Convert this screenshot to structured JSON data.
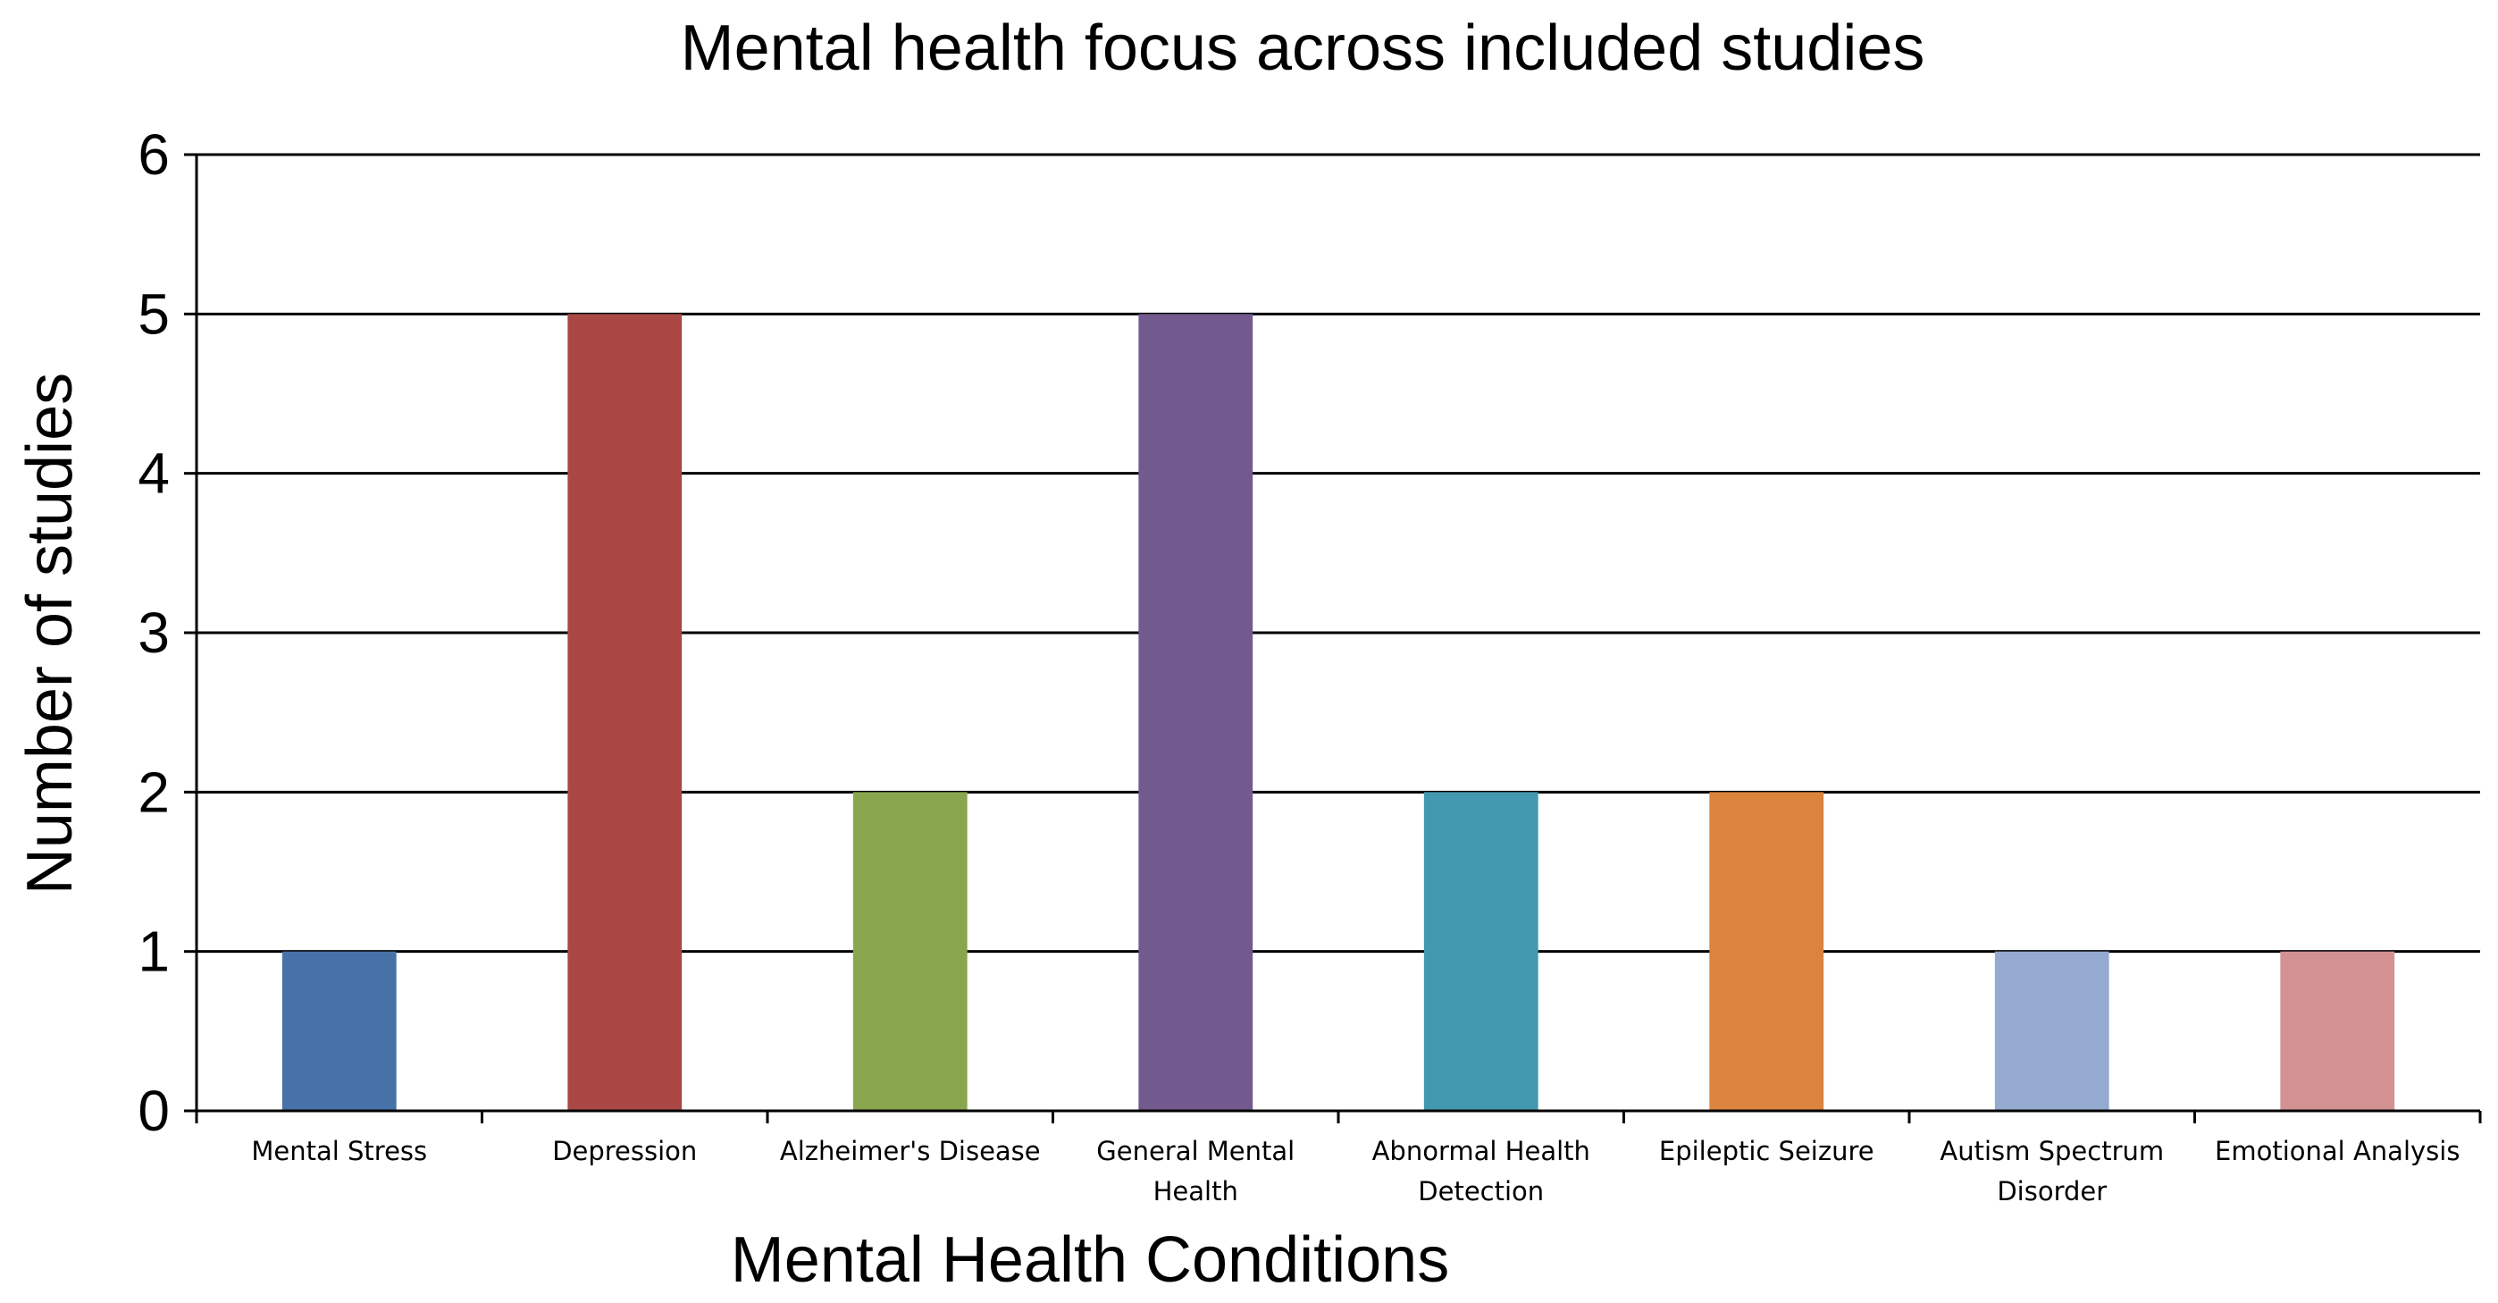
{
  "chart_data": {
    "type": "bar",
    "title": "Mental health focus across included studies",
    "xlabel": "Mental Health Conditions",
    "ylabel": "Number of studies",
    "ylim": [
      0,
      6
    ],
    "yticks": [
      0,
      1,
      2,
      3,
      4,
      5,
      6
    ],
    "grid": true,
    "legend": "none",
    "categories": [
      "Mental Stress",
      "Depression",
      "Alzheimer's Disease",
      "General Mental Health",
      "Abnormal Health Detection",
      "Epileptic Seizure",
      "Autism Spectrum Disorder",
      "Emotional Analysis"
    ],
    "category_lines": [
      [
        "Mental Stress"
      ],
      [
        "Depression"
      ],
      [
        "Alzheimer's Disease"
      ],
      [
        "General Mental",
        "Health"
      ],
      [
        "Abnormal Health",
        "Detection"
      ],
      [
        "Epileptic Seizure"
      ],
      [
        "Autism Spectrum",
        "Disorder"
      ],
      [
        "Emotional Analysis"
      ]
    ],
    "values": [
      1,
      5,
      2,
      5,
      2,
      2,
      1,
      1
    ],
    "colors": [
      "#4672A8",
      "#A94745",
      "#89A54E",
      "#725A8E",
      "#4299AF",
      "#DB843D",
      "#95AACF",
      "#D39192"
    ]
  }
}
